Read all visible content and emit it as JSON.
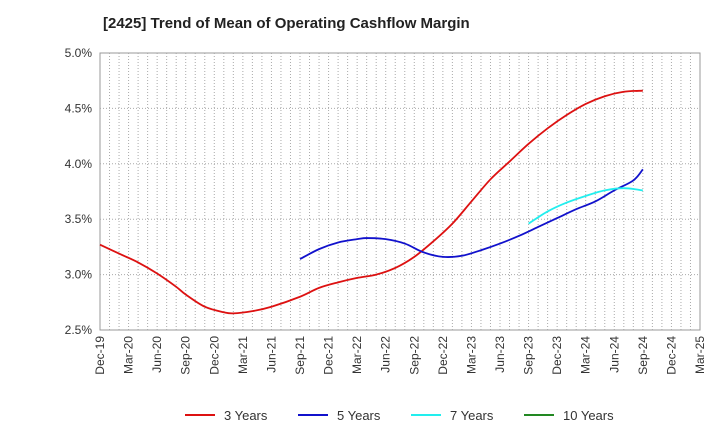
{
  "chart_data": {
    "type": "line",
    "title": "[2425]  Trend of Mean of Operating Cashflow Margin",
    "xlabel": "",
    "ylabel": "",
    "ylim": [
      2.5,
      5.0
    ],
    "yticks": [
      "2.5%",
      "3.0%",
      "3.5%",
      "4.0%",
      "4.5%",
      "5.0%"
    ],
    "categories": [
      "Dec-19",
      "Mar-20",
      "Jun-20",
      "Sep-20",
      "Dec-20",
      "Mar-21",
      "Jun-21",
      "Sep-21",
      "Dec-21",
      "Mar-22",
      "Jun-22",
      "Sep-22",
      "Dec-22",
      "Mar-23",
      "Jun-23",
      "Sep-23",
      "Dec-23",
      "Mar-24",
      "Jun-24",
      "Sep-24",
      "Dec-24",
      "Mar-25"
    ],
    "grid": true,
    "legend_position": "bottom",
    "series": [
      {
        "name": "3 Years",
        "color": "#dd1111",
        "points": [
          [
            "Dec-19",
            3.27
          ],
          [
            "Feb-20",
            3.19
          ],
          [
            "Apr-20",
            3.11
          ],
          [
            "Jun-20",
            3.01
          ],
          [
            "Aug-20",
            2.89
          ],
          [
            "Sep-20",
            2.82
          ],
          [
            "Nov-20",
            2.71
          ],
          [
            "Jan-21",
            2.66
          ],
          [
            "Feb-21",
            2.65
          ],
          [
            "Apr-21",
            2.67
          ],
          [
            "Jun-21",
            2.71
          ],
          [
            "Sep-21",
            2.8
          ],
          [
            "Nov-21",
            2.88
          ],
          [
            "Jan-22",
            2.93
          ],
          [
            "Mar-22",
            2.97
          ],
          [
            "May-22",
            3.0
          ],
          [
            "Jul-22",
            3.06
          ],
          [
            "Sep-22",
            3.16
          ],
          [
            "Nov-22",
            3.3
          ],
          [
            "Jan-23",
            3.46
          ],
          [
            "Mar-23",
            3.66
          ],
          [
            "May-23",
            3.86
          ],
          [
            "Jul-23",
            4.02
          ],
          [
            "Sep-23",
            4.18
          ],
          [
            "Nov-23",
            4.32
          ],
          [
            "Jan-24",
            4.44
          ],
          [
            "Mar-24",
            4.54
          ],
          [
            "May-24",
            4.61
          ],
          [
            "Jul-24",
            4.65
          ],
          [
            "Sep-24",
            4.66
          ]
        ]
      },
      {
        "name": "5 Years",
        "color": "#1111cc",
        "points": [
          [
            "Sep-21",
            3.14
          ],
          [
            "Nov-21",
            3.23
          ],
          [
            "Jan-22",
            3.29
          ],
          [
            "Mar-22",
            3.32
          ],
          [
            "Apr-22",
            3.33
          ],
          [
            "Jun-22",
            3.32
          ],
          [
            "Aug-22",
            3.28
          ],
          [
            "Oct-22",
            3.2
          ],
          [
            "Dec-22",
            3.16
          ],
          [
            "Feb-23",
            3.17
          ],
          [
            "Apr-23",
            3.22
          ],
          [
            "Jun-23",
            3.28
          ],
          [
            "Aug-23",
            3.35
          ],
          [
            "Oct-23",
            3.43
          ],
          [
            "Dec-23",
            3.51
          ],
          [
            "Feb-24",
            3.59
          ],
          [
            "Apr-24",
            3.66
          ],
          [
            "Jun-24",
            3.76
          ],
          [
            "Aug-24",
            3.85
          ],
          [
            "Sep-24",
            3.95
          ]
        ]
      },
      {
        "name": "7 Years",
        "color": "#22eeee",
        "points": [
          [
            "Sep-23",
            3.46
          ],
          [
            "Nov-23",
            3.57
          ],
          [
            "Jan-24",
            3.65
          ],
          [
            "Mar-24",
            3.71
          ],
          [
            "May-24",
            3.76
          ],
          [
            "Jul-24",
            3.78
          ],
          [
            "Sep-24",
            3.76
          ]
        ]
      },
      {
        "name": "10 Years",
        "color": "#228822",
        "points": []
      }
    ]
  }
}
